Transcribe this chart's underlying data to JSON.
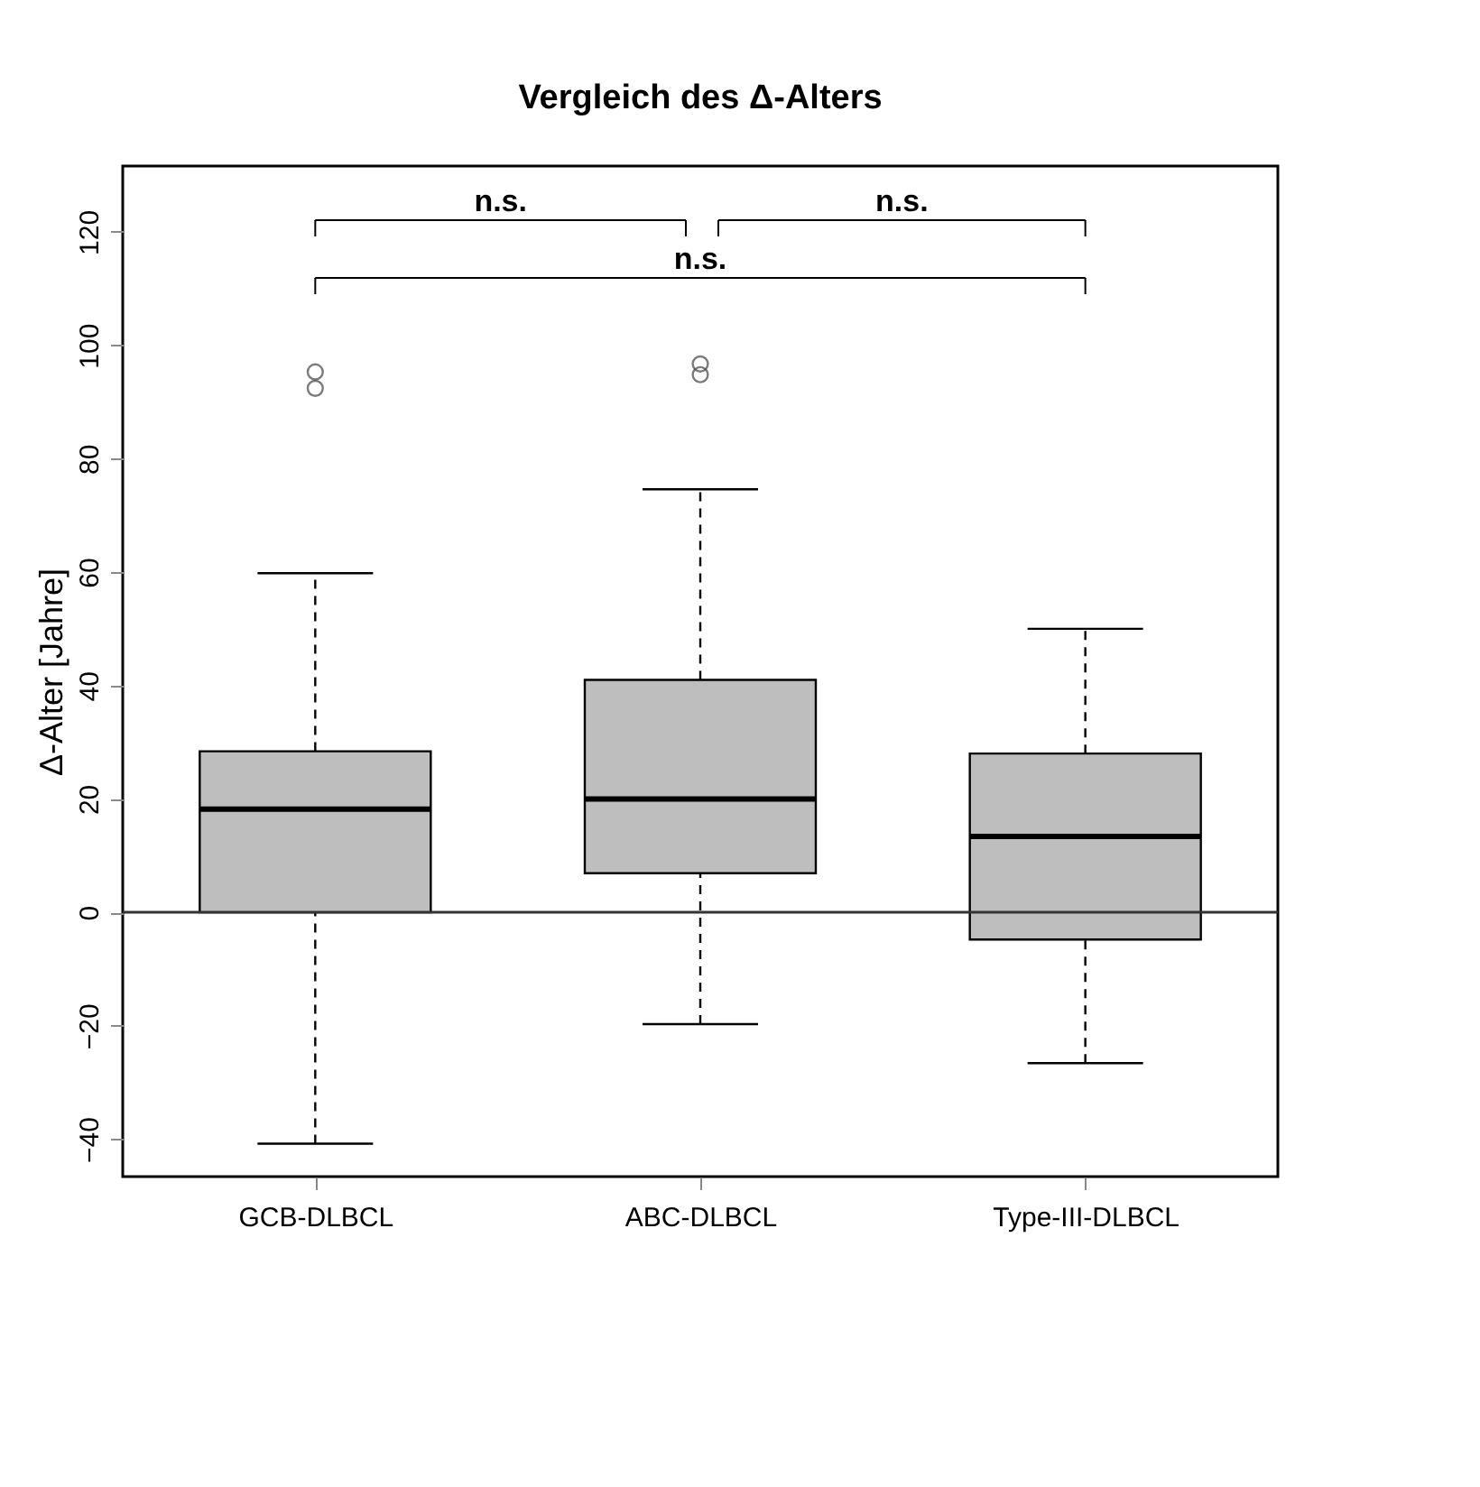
{
  "chart_data": {
    "type": "box",
    "title": "Vergleich des Δ-Alters",
    "ylabel": "Δ-Alter [Jahre]",
    "categories": [
      "GCB-DLBCL",
      "ABC-DLBCL",
      "Type-III-DLBCL"
    ],
    "color": "#bebebe",
    "boxes": [
      {
        "low": -40.8,
        "q1": 0,
        "median": 18.2,
        "q3": 28.4,
        "high": 59.8,
        "outliers": [
          95.3,
          92.4
        ]
      },
      {
        "low": -19.7,
        "q1": 6.9,
        "median": 20,
        "q3": 41,
        "high": 74.6,
        "outliers": [
          96.7,
          94.8
        ]
      },
      {
        "low": -26.6,
        "q1": -4.8,
        "median": 13.4,
        "q3": 28,
        "high": 50
      }
    ],
    "ylim": [
      -46.6,
      131.6
    ],
    "yticks": [
      -40,
      -20,
      0,
      20,
      40,
      60,
      80,
      100,
      120
    ],
    "grid": false,
    "ref_lines": [
      {
        "axis": "y",
        "value": 0
      }
    ],
    "annotations": [
      "n.s.",
      "n.s.",
      "n.s."
    ]
  }
}
